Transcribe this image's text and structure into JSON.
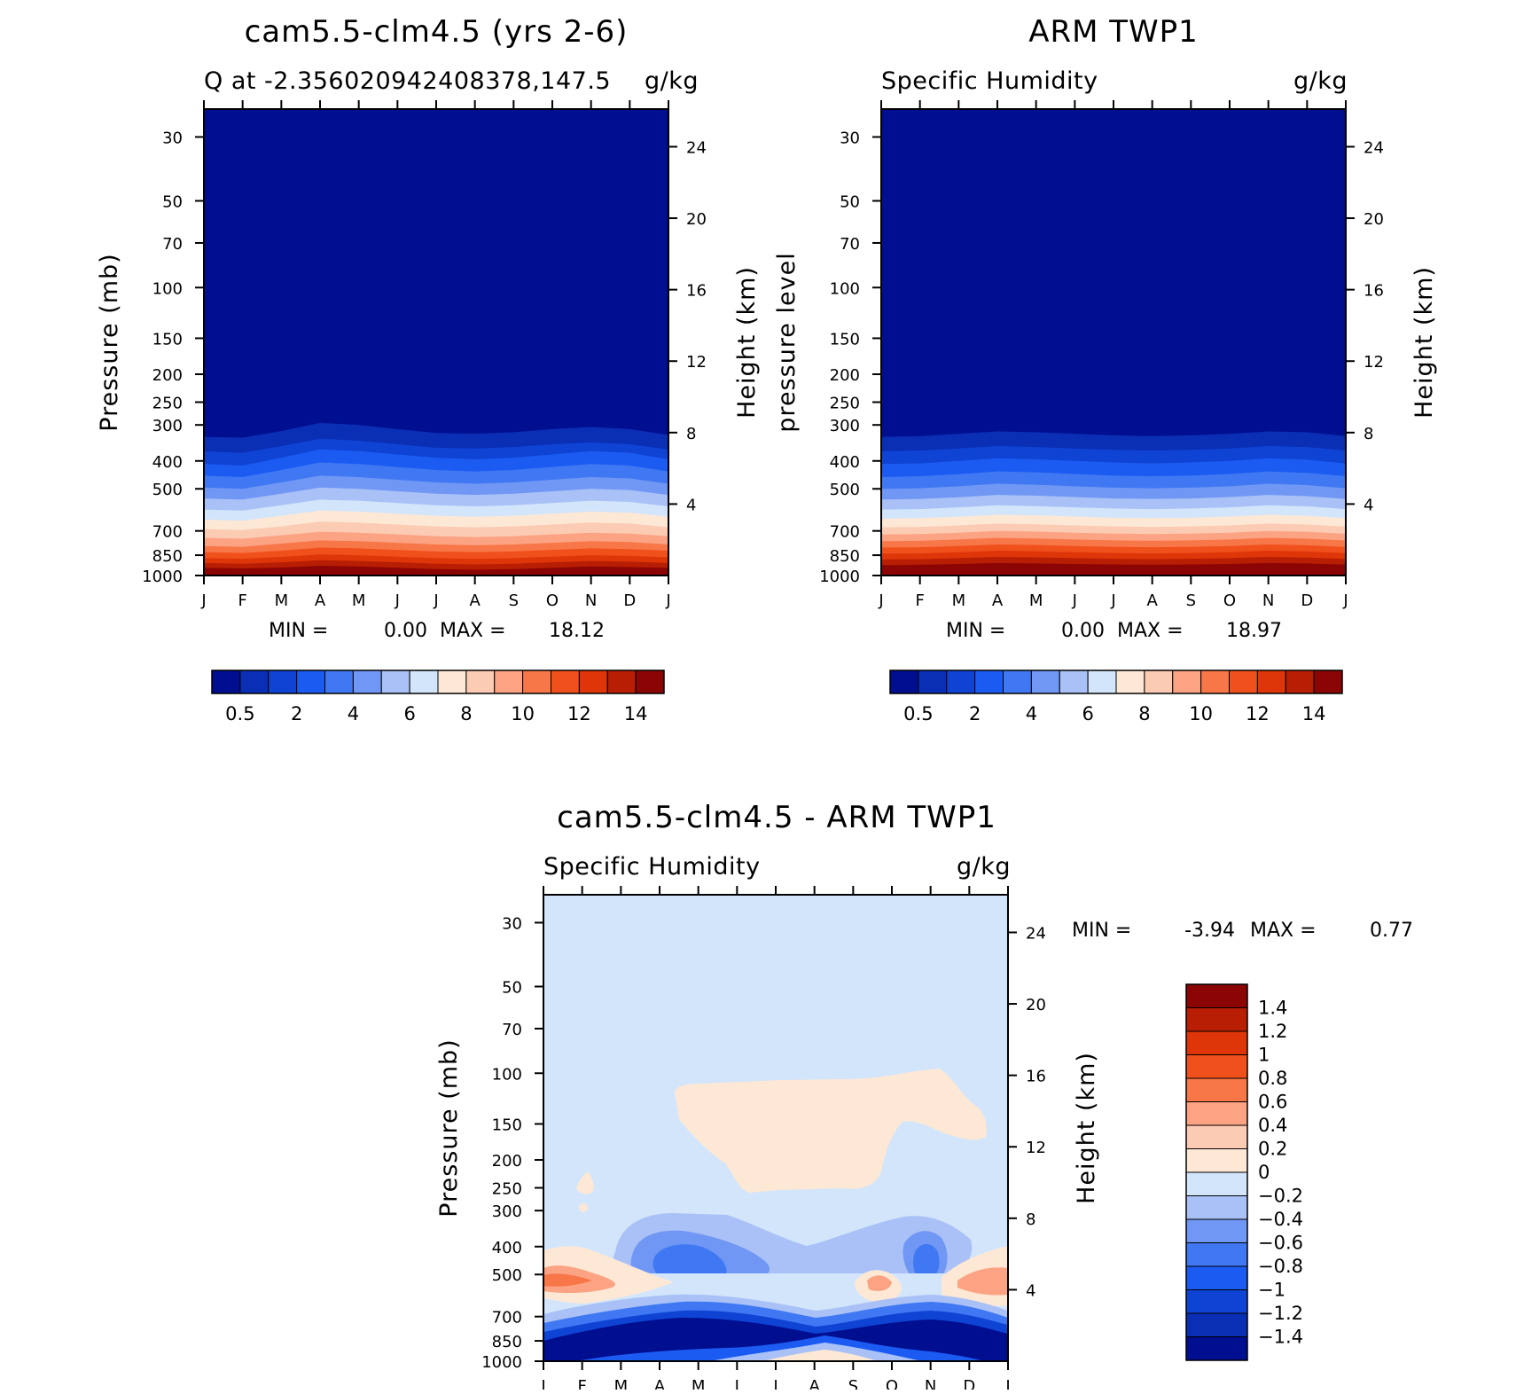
{
  "colors": {
    "palette": [
      "#000e90",
      "#0a2eb4",
      "#0f43d4",
      "#1c5bf2",
      "#3f78f2",
      "#7197f4",
      "#a9c1f6",
      "#d2e5fa",
      "#fde8d6",
      "#fccbb4",
      "#fca384",
      "#f87748",
      "#f0501c",
      "#de3608",
      "#b81e04",
      "#8c0505"
    ]
  },
  "chart_data": [
    {
      "type": "heatmap",
      "title": "cam5.5-clm4.5 (yrs 2-6)",
      "subtitle_left": "Q at -2.356020942408378,147.5",
      "subtitle_right": "g/kg",
      "ylabel_left": "Pressure (mb)",
      "ylabel_right": "Height (km)",
      "x_ticks": [
        "J",
        "F",
        "M",
        "A",
        "M",
        "J",
        "J",
        "A",
        "S",
        "O",
        "N",
        "D",
        "J"
      ],
      "y_ticks_pressure": [
        30,
        50,
        70,
        100,
        150,
        200,
        250,
        300,
        400,
        500,
        700,
        850,
        1000
      ],
      "y_ticks_height": [
        4,
        8,
        12,
        16,
        20,
        24
      ],
      "y_scale": "log",
      "ylim": [
        1000,
        24
      ],
      "min_label": "MIN =",
      "min_value": "0.00",
      "max_label": "MAX =",
      "max_value": "18.12",
      "colorbar_labels": [
        "0.5",
        "2",
        "4",
        "6",
        "8",
        "10",
        "12",
        "14"
      ],
      "layer_boundaries_mb": [
        [
          980,
          990,
          985,
          980,
          985,
          990,
          992,
          990,
          985,
          980,
          975,
          978,
          983
        ],
        [
          940,
          945,
          938,
          925,
          930,
          940,
          950,
          955,
          950,
          940,
          930,
          935,
          940
        ],
        [
          905,
          910,
          900,
          885,
          890,
          900,
          910,
          915,
          910,
          900,
          890,
          895,
          905
        ],
        [
          870,
          875,
          862,
          845,
          850,
          860,
          870,
          875,
          870,
          860,
          850,
          855,
          865
        ],
        [
          830,
          835,
          820,
          800,
          805,
          815,
          825,
          830,
          825,
          815,
          805,
          810,
          820
        ],
        [
          790,
          795,
          775,
          755,
          760,
          770,
          780,
          785,
          780,
          770,
          760,
          765,
          780
        ],
        [
          740,
          745,
          725,
          705,
          710,
          720,
          730,
          735,
          730,
          720,
          710,
          715,
          730
        ],
        [
          690,
          695,
          675,
          650,
          655,
          665,
          675,
          680,
          675,
          665,
          655,
          660,
          680
        ],
        [
          640,
          645,
          620,
          595,
          600,
          610,
          620,
          625,
          620,
          610,
          600,
          605,
          625
        ],
        [
          590,
          595,
          570,
          545,
          550,
          560,
          570,
          575,
          570,
          560,
          550,
          555,
          575
        ],
        [
          540,
          545,
          520,
          495,
          500,
          510,
          520,
          525,
          520,
          510,
          500,
          505,
          525
        ],
        [
          495,
          500,
          475,
          450,
          455,
          465,
          475,
          480,
          475,
          465,
          455,
          460,
          480
        ],
        [
          450,
          455,
          430,
          405,
          410,
          420,
          430,
          435,
          430,
          420,
          410,
          415,
          435
        ],
        [
          410,
          415,
          390,
          365,
          370,
          380,
          390,
          395,
          390,
          380,
          370,
          375,
          395
        ],
        [
          370,
          375,
          355,
          335,
          340,
          350,
          360,
          362,
          358,
          350,
          345,
          350,
          365
        ],
        [
          330,
          332,
          315,
          295,
          300,
          310,
          320,
          322,
          318,
          310,
          305,
          310,
          325
        ]
      ]
    },
    {
      "type": "heatmap",
      "title": "ARM TWP1",
      "subtitle_left": "Specific Humidity",
      "subtitle_right": "g/kg",
      "ylabel_left": "pressure level",
      "ylabel_right": "Height (km)",
      "x_ticks": [
        "J",
        "F",
        "M",
        "A",
        "M",
        "J",
        "J",
        "A",
        "S",
        "O",
        "N",
        "D",
        "J"
      ],
      "y_ticks_pressure": [
        30,
        50,
        70,
        100,
        150,
        200,
        250,
        300,
        400,
        500,
        700,
        850,
        1000
      ],
      "y_ticks_height": [
        4,
        8,
        12,
        16,
        20,
        24
      ],
      "y_scale": "log",
      "ylim": [
        1000,
        24
      ],
      "min_label": "MIN =",
      "min_value": "0.00",
      "max_label": "MAX =",
      "max_value": "18.97",
      "colorbar_labels": [
        "0.5",
        "2",
        "4",
        "6",
        "8",
        "10",
        "12",
        "14"
      ],
      "layer_boundaries_mb": [
        [
          960,
          958,
          955,
          950,
          952,
          955,
          958,
          960,
          958,
          955,
          950,
          952,
          958
        ],
        [
          920,
          918,
          912,
          905,
          908,
          912,
          915,
          918,
          915,
          912,
          905,
          908,
          916
        ],
        [
          880,
          878,
          870,
          862,
          865,
          870,
          875,
          878,
          875,
          870,
          862,
          866,
          876
        ],
        [
          840,
          838,
          830,
          820,
          824,
          830,
          835,
          838,
          835,
          830,
          820,
          825,
          836
        ],
        [
          800,
          798,
          790,
          780,
          784,
          790,
          795,
          798,
          795,
          790,
          780,
          785,
          796
        ],
        [
          760,
          758,
          750,
          740,
          744,
          750,
          755,
          758,
          755,
          750,
          740,
          745,
          756
        ],
        [
          720,
          718,
          710,
          700,
          704,
          710,
          715,
          718,
          715,
          710,
          700,
          705,
          716
        ],
        [
          680,
          678,
          670,
          660,
          664,
          670,
          675,
          678,
          675,
          670,
          660,
          665,
          676
        ],
        [
          635,
          632,
          625,
          615,
          618,
          624,
          630,
          632,
          630,
          624,
          615,
          620,
          632
        ],
        [
          590,
          588,
          580,
          570,
          574,
          580,
          585,
          588,
          585,
          580,
          570,
          575,
          588
        ],
        [
          545,
          542,
          535,
          525,
          528,
          534,
          540,
          542,
          540,
          534,
          525,
          530,
          542
        ],
        [
          500,
          498,
          490,
          480,
          484,
          490,
          495,
          498,
          495,
          490,
          480,
          485,
          498
        ],
        [
          455,
          452,
          445,
          435,
          438,
          444,
          450,
          452,
          450,
          444,
          435,
          440,
          452
        ],
        [
          410,
          408,
          400,
          392,
          395,
          400,
          405,
          408,
          405,
          400,
          392,
          396,
          408
        ],
        [
          370,
          368,
          362,
          355,
          358,
          362,
          366,
          368,
          366,
          362,
          355,
          358,
          368
        ],
        [
          330,
          328,
          322,
          316,
          318,
          322,
          326,
          328,
          326,
          322,
          316,
          318,
          328
        ]
      ]
    },
    {
      "type": "heatmap",
      "title": "cam5.5-clm4.5 - ARM TWP1",
      "subtitle_left": "Specific Humidity",
      "subtitle_right": "g/kg",
      "ylabel_left": "Pressure (mb)",
      "ylabel_right": "Height (km)",
      "x_ticks": [
        "J",
        "F",
        "M",
        "A",
        "M",
        "J",
        "J",
        "A",
        "S",
        "O",
        "N",
        "D",
        "J"
      ],
      "y_ticks_pressure": [
        30,
        50,
        70,
        100,
        150,
        200,
        250,
        300,
        400,
        500,
        700,
        850,
        1000
      ],
      "y_ticks_height": [
        4,
        8,
        12,
        16,
        20,
        24
      ],
      "y_scale": "log",
      "ylim": [
        1000,
        24
      ],
      "min_label": "MIN =",
      "min_value": "-3.94",
      "max_label": "MAX =",
      "max_value": "0.77",
      "colorbar_labels": [
        "1.4",
        "1.2",
        "1",
        "0.8",
        "0.6",
        "0.4",
        "0.2",
        "0",
        "-0.2",
        "-0.4",
        "-0.6",
        "-0.8",
        "-1",
        "-1.2",
        "-1.4"
      ]
    }
  ]
}
